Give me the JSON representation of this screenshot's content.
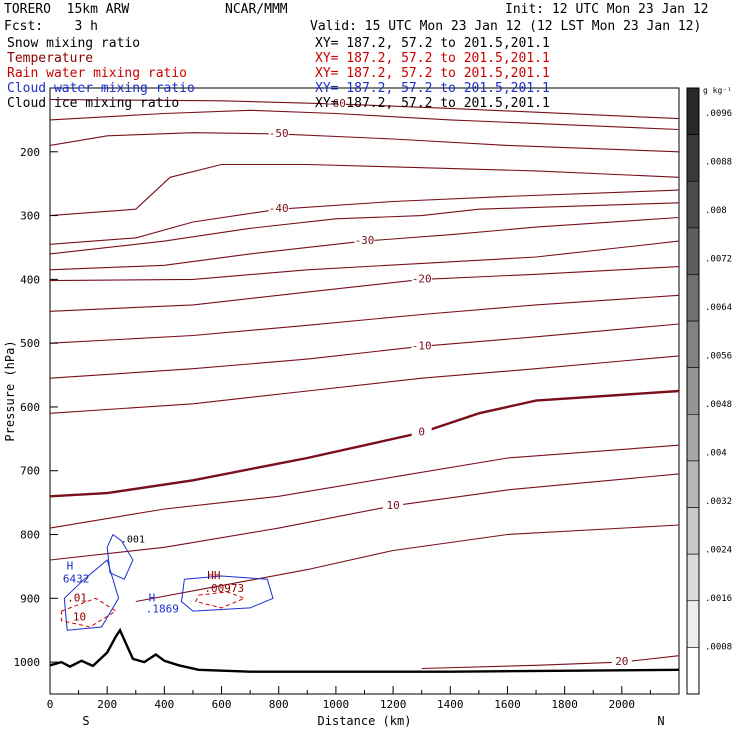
{
  "header": {
    "model": "TORERO  15km ARW",
    "center": "NCAR/MMM",
    "init": "Init: 12 UTC Mon 23 Jan 12",
    "fcst": "Fcst:    3 h",
    "valid": "Valid: 15 UTC Mon 23 Jan 12 (12 LST Mon 23 Jan 12)"
  },
  "fields": [
    {
      "label": "Snow mixing ratio",
      "xy": "XY= 187.2, 57.2 to 201.5,201.1",
      "color": "#000000"
    },
    {
      "label": "Temperature",
      "xy": "XY= 187.2, 57.2 to 201.5,201.1",
      "color": "#8b0000"
    },
    {
      "label": "Rain water mixing ratio",
      "xy": "XY= 187.2, 57.2 to 201.5,201.1",
      "color": "#cc0000"
    },
    {
      "label": "Cloud water mixing ratio",
      "xy": "XY= 187.2, 57.2 to 201.5,201.1",
      "color": "#1a2fcc"
    },
    {
      "label": "Cloud ice mixing ratio",
      "xy": "XY= 187.2, 57.2 to 201.5,201.1",
      "color": "#000000"
    }
  ],
  "chart_data": {
    "type": "cross-section contour",
    "xlabel": "Distance (km)",
    "ylabel": "Pressure (hPa)",
    "xlim": [
      0,
      2200
    ],
    "ylim": [
      1050,
      100
    ],
    "x_ticks": [
      0,
      200,
      400,
      600,
      800,
      1000,
      1200,
      1400,
      1600,
      1800,
      2000
    ],
    "y_ticks": [
      200,
      300,
      400,
      500,
      600,
      700,
      800,
      900,
      1000
    ],
    "x_end_labels": {
      "left": "S",
      "right": "N"
    },
    "temperature_contours": [
      {
        "value": -60,
        "label": "-60",
        "points": [
          [
            0,
            118
          ],
          [
            600,
            120
          ],
          [
            1000,
            125
          ],
          [
            1400,
            132
          ],
          [
            2200,
            148
          ]
        ]
      },
      {
        "value": -55,
        "label": "",
        "points": [
          [
            0,
            150
          ],
          [
            400,
            140
          ],
          [
            700,
            135
          ],
          [
            1000,
            140
          ],
          [
            1400,
            150
          ],
          [
            2200,
            165
          ]
        ]
      },
      {
        "value": -50,
        "label": "-50",
        "points": [
          [
            0,
            190
          ],
          [
            200,
            175
          ],
          [
            500,
            170
          ],
          [
            800,
            172
          ],
          [
            1200,
            180
          ],
          [
            1600,
            190
          ],
          [
            2200,
            200
          ]
        ]
      },
      {
        "value": -45,
        "label": "",
        "points": [
          [
            0,
            300
          ],
          [
            300,
            290
          ],
          [
            420,
            240
          ],
          [
            600,
            220
          ],
          [
            900,
            220
          ],
          [
            1300,
            225
          ],
          [
            1700,
            230
          ],
          [
            2200,
            240
          ]
        ]
      },
      {
        "value": -40,
        "label": "-40",
        "points": [
          [
            0,
            345
          ],
          [
            300,
            335
          ],
          [
            500,
            310
          ],
          [
            800,
            290
          ],
          [
            1200,
            278
          ],
          [
            1600,
            270
          ],
          [
            2200,
            260
          ]
        ]
      },
      {
        "value": -35,
        "label": "",
        "points": [
          [
            0,
            360
          ],
          [
            400,
            340
          ],
          [
            700,
            320
          ],
          [
            1000,
            305
          ],
          [
            1300,
            300
          ],
          [
            1500,
            290
          ],
          [
            2200,
            280
          ]
        ]
      },
      {
        "value": -30,
        "label": "-30",
        "points": [
          [
            0,
            385
          ],
          [
            400,
            378
          ],
          [
            700,
            360
          ],
          [
            1100,
            340
          ],
          [
            1400,
            330
          ],
          [
            1700,
            318
          ],
          [
            2200,
            303
          ]
        ]
      },
      {
        "value": -25,
        "label": "",
        "points": [
          [
            0,
            402
          ],
          [
            500,
            400
          ],
          [
            900,
            385
          ],
          [
            1300,
            375
          ],
          [
            1700,
            365
          ],
          [
            2200,
            340
          ]
        ]
      },
      {
        "value": -20,
        "label": "-20",
        "points": [
          [
            0,
            450
          ],
          [
            500,
            440
          ],
          [
            900,
            420
          ],
          [
            1300,
            400
          ],
          [
            1700,
            392
          ],
          [
            2200,
            380
          ]
        ]
      },
      {
        "value": -15,
        "label": "",
        "points": [
          [
            0,
            500
          ],
          [
            500,
            488
          ],
          [
            900,
            472
          ],
          [
            1300,
            455
          ],
          [
            1700,
            440
          ],
          [
            2200,
            425
          ]
        ]
      },
      {
        "value": -10,
        "label": "-10",
        "points": [
          [
            0,
            555
          ],
          [
            500,
            540
          ],
          [
            900,
            525
          ],
          [
            1300,
            505
          ],
          [
            1700,
            490
          ],
          [
            2200,
            470
          ]
        ]
      },
      {
        "value": -5,
        "label": "",
        "points": [
          [
            0,
            610
          ],
          [
            500,
            595
          ],
          [
            900,
            575
          ],
          [
            1300,
            555
          ],
          [
            1700,
            540
          ],
          [
            2200,
            520
          ]
        ]
      },
      {
        "value": 0,
        "label": "0",
        "points": [
          [
            0,
            740
          ],
          [
            200,
            735
          ],
          [
            500,
            715
          ],
          [
            900,
            680
          ],
          [
            1300,
            640
          ],
          [
            1500,
            610
          ],
          [
            1700,
            590
          ],
          [
            2200,
            575
          ]
        ]
      },
      {
        "value": 5,
        "label": "",
        "points": [
          [
            0,
            790
          ],
          [
            400,
            760
          ],
          [
            800,
            740
          ],
          [
            1200,
            710
          ],
          [
            1600,
            680
          ],
          [
            2200,
            660
          ]
        ]
      },
      {
        "value": 10,
        "label": "10",
        "points": [
          [
            0,
            840
          ],
          [
            400,
            820
          ],
          [
            800,
            790
          ],
          [
            1200,
            755
          ],
          [
            1600,
            730
          ],
          [
            2200,
            705
          ]
        ]
      },
      {
        "value": 15,
        "label": "",
        "points": [
          [
            300,
            905
          ],
          [
            600,
            880
          ],
          [
            900,
            855
          ],
          [
            1200,
            825
          ],
          [
            1600,
            800
          ],
          [
            2200,
            785
          ]
        ]
      },
      {
        "value": 20,
        "label": "20",
        "points": [
          [
            1300,
            1010
          ],
          [
            1700,
            1005
          ],
          [
            2000,
            1000
          ],
          [
            2200,
            990
          ]
        ]
      }
    ],
    "terrain": [
      [
        0,
        1005
      ],
      [
        40,
        1000
      ],
      [
        70,
        1007
      ],
      [
        110,
        998
      ],
      [
        150,
        1006
      ],
      [
        200,
        985
      ],
      [
        230,
        960
      ],
      [
        245,
        950
      ],
      [
        260,
        965
      ],
      [
        290,
        995
      ],
      [
        330,
        1000
      ],
      [
        370,
        988
      ],
      [
        400,
        998
      ],
      [
        450,
        1005
      ],
      [
        520,
        1012
      ],
      [
        700,
        1015
      ],
      [
        1400,
        1015
      ],
      [
        2200,
        1012
      ]
    ],
    "cloud_water_contours": [
      {
        "label": ".001",
        "points": [
          [
            220,
            800
          ],
          [
            250,
            810
          ],
          [
            290,
            840
          ],
          [
            260,
            870
          ],
          [
            210,
            860
          ],
          [
            200,
            820
          ],
          [
            220,
            800
          ]
        ]
      },
      {
        "label": "",
        "points": [
          [
            120,
            870
          ],
          [
            200,
            840
          ],
          [
            240,
            900
          ],
          [
            180,
            945
          ],
          [
            60,
            950
          ],
          [
            50,
            900
          ],
          [
            120,
            870
          ]
        ]
      },
      {
        "label": "",
        "points": [
          [
            470,
            870
          ],
          [
            600,
            865
          ],
          [
            760,
            870
          ],
          [
            780,
            900
          ],
          [
            700,
            915
          ],
          [
            500,
            920
          ],
          [
            460,
            905
          ],
          [
            470,
            870
          ]
        ]
      }
    ],
    "rain_contours": [
      {
        "label": ".00973",
        "points": [
          [
            520,
            895
          ],
          [
            620,
            890
          ],
          [
            680,
            900
          ],
          [
            600,
            915
          ],
          [
            510,
            905
          ],
          [
            520,
            895
          ]
        ]
      },
      {
        "label": ".01",
        "points": [
          [
            40,
            920
          ],
          [
            160,
            900
          ],
          [
            230,
            920
          ],
          [
            140,
            945
          ],
          [
            40,
            935
          ],
          [
            40,
            920
          ]
        ]
      }
    ],
    "annotations": [
      {
        "text": "H",
        "x": 58,
        "y": 855,
        "color": "#1a2fcc"
      },
      {
        "text": "6432",
        "x": 45,
        "y": 875,
        "color": "#1a2fcc"
      },
      {
        "text": "H",
        "x": 345,
        "y": 905,
        "color": "#1a2fcc"
      },
      {
        "text": ".1869",
        "x": 335,
        "y": 922,
        "color": "#1a2fcc"
      },
      {
        "text": "HH",
        "x": 550,
        "y": 870,
        "color": "#8b0000"
      },
      {
        "text": ".00973",
        "x": 540,
        "y": 890,
        "color": "#8b0000"
      },
      {
        "text": ".01",
        "x": 60,
        "y": 905,
        "color": "#8b0000"
      },
      {
        "text": "10",
        "x": 80,
        "y": 935,
        "color": "#8b0000"
      }
    ],
    "colorbar": {
      "unit": "g kg⁻¹",
      "labels": [
        ".0096",
        ".0088",
        ".008",
        ".0072",
        ".0064",
        ".0056",
        ".0048",
        ".004",
        ".0032",
        ".0024",
        ".0016",
        ".0008"
      ],
      "min": 0,
      "max": 0.01
    }
  }
}
